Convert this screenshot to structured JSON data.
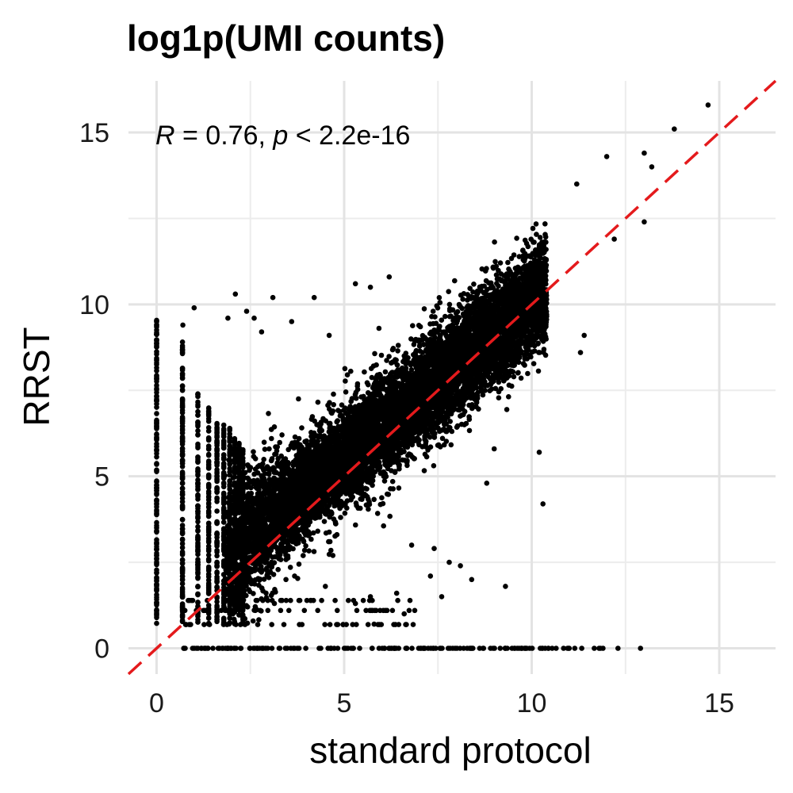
{
  "chart_data": {
    "type": "scatter",
    "title": "log1p(UMI counts)",
    "xlabel": "standard protocol",
    "ylabel": "RRST",
    "xlim": [
      -0.75,
      16.5
    ],
    "ylim": [
      -0.75,
      16.5
    ],
    "x_ticks": [
      0,
      5,
      10,
      15
    ],
    "y_ticks": [
      0,
      5,
      10,
      15
    ],
    "grid": true,
    "annotation": {
      "r_label": "R",
      "r_text": " = 0.76, ",
      "p_label": "p",
      "p_text": " < 2.2e-16"
    },
    "reference_line": {
      "slope": 1,
      "intercept": 0,
      "style": "dashed",
      "color": "#e41a1c"
    },
    "point_color": "#000000",
    "points": [
      [
        14.7,
        15.8
      ],
      [
        13.8,
        15.1
      ],
      [
        13.0,
        14.4
      ],
      [
        13.2,
        14.0
      ],
      [
        12.0,
        14.3
      ],
      [
        11.2,
        13.5
      ],
      [
        12.2,
        11.9
      ],
      [
        13.0,
        12.4
      ],
      [
        10.2,
        10.3
      ],
      [
        11.4,
        9.1
      ],
      [
        11.3,
        8.6
      ],
      [
        10.3,
        4.2
      ],
      [
        10.2,
        5.7
      ],
      [
        9.0,
        5.8
      ],
      [
        8.8,
        4.8
      ],
      [
        9.3,
        1.8
      ],
      [
        6.2,
        10.8
      ],
      [
        5.7,
        10.5
      ],
      [
        5.3,
        10.6
      ],
      [
        4.2,
        10.2
      ],
      [
        3.1,
        10.2
      ],
      [
        2.1,
        10.3
      ],
      [
        1.9,
        9.6
      ],
      [
        1.0,
        9.9
      ],
      [
        0.7,
        9.4
      ],
      [
        2.4,
        9.8
      ],
      [
        2.6,
        9.6
      ],
      [
        3.6,
        9.5
      ],
      [
        2.8,
        9.2
      ],
      [
        4.6,
        9.1
      ],
      [
        6.8,
        3.0
      ],
      [
        7.4,
        2.9
      ],
      [
        7.8,
        2.5
      ],
      [
        8.4,
        2.0
      ],
      [
        8.1,
        2.4
      ],
      [
        7.3,
        2.1
      ],
      [
        7.6,
        1.5
      ],
      [
        6.6,
        1.0
      ],
      [
        6.4,
        1.6
      ],
      [
        5.7,
        1.5
      ],
      [
        5.3,
        1.3
      ],
      [
        5.8,
        0.7
      ],
      [
        6.1,
        1.1
      ],
      [
        4.7,
        2.7
      ],
      [
        4.5,
        1.8
      ],
      [
        12.9,
        0
      ],
      [
        12.3,
        0
      ],
      [
        11.9,
        0
      ]
    ]
  }
}
